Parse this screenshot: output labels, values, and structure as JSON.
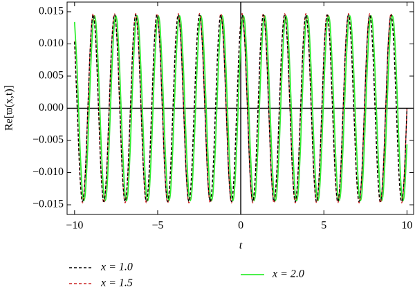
{
  "chart_data": {
    "type": "line",
    "x_label": "t",
    "y_label": "Re[ϖ(x,t)]",
    "xlim": [
      -10.45,
      10.4
    ],
    "ylim": [
      -0.0165,
      0.0165
    ],
    "xticks": [
      {
        "value": -10,
        "label": "−10"
      },
      {
        "value": -5,
        "label": "−5"
      },
      0,
      5,
      10
    ],
    "yticks": [
      {
        "value": 0.015,
        "label": "0.015"
      },
      {
        "value": 0.01,
        "label": "0.010"
      },
      {
        "value": 0.005,
        "label": "0.005"
      },
      {
        "value": 0,
        "label": "0.000"
      },
      {
        "value": -0.005,
        "label": "−0.005"
      },
      {
        "value": -0.01,
        "label": "−0.010"
      },
      {
        "value": -0.015,
        "label": "−0.015"
      }
    ],
    "x": [
      -10,
      -9.84,
      -9.68,
      -9.52,
      -9.36,
      -9.2,
      -9.04,
      -8.88,
      -8.72,
      -8.56,
      -8.4,
      -8.24,
      -8.08,
      -7.92,
      -7.76,
      -7.6,
      -7.44,
      -7.28,
      -7.12,
      -6.96,
      -6.8,
      -6.64,
      -6.48,
      -6.32,
      -6.16,
      -6,
      -5.84,
      -5.68,
      -5.52,
      -5.36,
      -5.2,
      -5.04,
      -4.88,
      -4.72,
      -4.56,
      -4.4,
      -4.24,
      -4.08,
      -3.92,
      -3.76,
      -3.6,
      -3.44,
      -3.28,
      -3.12,
      -2.96,
      -2.8,
      -2.64,
      -2.48,
      -2.32,
      -2.16,
      -2,
      -1.84,
      -1.68,
      -1.52,
      -1.36,
      -1.2,
      -1.04,
      -0.88,
      -0.72,
      -0.56,
      -0.4,
      -0.24,
      -0.08,
      0.08,
      0.24,
      0.4,
      0.56,
      0.72,
      0.88,
      1.04,
      1.2,
      1.36,
      1.52,
      1.68,
      1.84,
      2,
      2.16,
      2.32,
      2.48,
      2.64,
      2.8,
      2.96,
      3.12,
      3.28,
      3.44,
      3.6,
      3.76,
      3.92,
      4.08,
      4.24,
      4.4,
      4.56,
      4.72,
      4.88,
      5.04,
      5.2,
      5.36,
      5.52,
      5.68,
      5.84,
      6,
      6.16,
      6.32,
      6.48,
      6.64,
      6.8,
      6.96,
      7.12,
      7.28,
      7.44,
      7.6,
      7.76,
      7.92,
      8.08,
      8.24,
      8.4,
      8.56,
      8.72,
      8.88,
      9.04,
      9.2,
      9.36,
      9.52,
      9.68,
      9.84,
      10
    ],
    "series": [
      {
        "name": "x = 1.0",
        "color": "#000000",
        "style": "dashed",
        "values": [
          0.0103,
          0,
          -0.0103,
          -0.0145,
          -0.0103,
          0,
          0.0103,
          0.0145,
          0.0103,
          0,
          -0.0103,
          -0.0145,
          -0.0103,
          0,
          0.0103,
          0.0145,
          0.0103,
          0,
          -0.0103,
          -0.0145,
          -0.0103,
          0,
          0.0103,
          0.0145,
          0.0103,
          0,
          -0.0103,
          -0.0145,
          -0.0103,
          0,
          0.0103,
          0.0145,
          0.0103,
          0,
          -0.0103,
          -0.0145,
          -0.0103,
          0,
          0.0103,
          0.0145,
          0.0103,
          0,
          -0.0103,
          -0.0145,
          -0.0103,
          0,
          0.0103,
          0.0145,
          0.0103,
          0,
          -0.0103,
          -0.0145,
          -0.0103,
          0,
          0.0103,
          0.0145,
          0.0103,
          0,
          -0.0103,
          -0.0145,
          -0.0103,
          0,
          0.0103,
          0.0145,
          0.0103,
          0,
          -0.0103,
          -0.0145,
          -0.0103,
          0,
          0.0103,
          0.0145,
          0.0103,
          0,
          -0.0103,
          -0.0145,
          -0.0103,
          0,
          0.0103,
          0.0145,
          0.0103,
          0,
          -0.0103,
          -0.0145,
          -0.0103,
          0,
          0.0103,
          0.0145,
          0.0103,
          0,
          -0.0103,
          -0.0145,
          -0.0103,
          0,
          0.0103,
          0.0145,
          0.0103,
          0,
          -0.0103,
          -0.0145,
          -0.0103,
          0,
          0.0103,
          0.0145,
          0.0103,
          0,
          -0.0103,
          -0.0145,
          -0.0103,
          0,
          0.0103,
          0.0145,
          0.0103,
          0,
          -0.0103,
          -0.0145,
          -0.0103,
          0,
          0.0103,
          0.0145,
          0.0103,
          0,
          -0.0103,
          -0.0145,
          -0.0103,
          0
        ]
      },
      {
        "name": "x = 1.5",
        "color": "#cc2222",
        "style": "dashed",
        "values": [
          0.0104,
          0,
          -0.0104,
          -0.0147,
          -0.0104,
          0,
          0.0104,
          0.0147,
          0.0104,
          0,
          -0.0104,
          -0.0147,
          -0.0104,
          0,
          0.0104,
          0.0147,
          0.0104,
          0,
          -0.0104,
          -0.0147,
          -0.0104,
          0,
          0.0104,
          0.0147,
          0.0104,
          0,
          -0.0104,
          -0.0147,
          -0.0104,
          0,
          0.0104,
          0.0147,
          0.0104,
          0,
          -0.0104,
          -0.0147,
          -0.0104,
          0,
          0.0104,
          0.0147,
          0.0104,
          0,
          -0.0104,
          -0.0147,
          -0.0104,
          0,
          0.0104,
          0.0147,
          0.0104,
          0,
          -0.0104,
          -0.0147,
          -0.0104,
          0,
          0.0104,
          0.0147,
          0.0104,
          0,
          -0.0104,
          -0.0147,
          -0.0104,
          0,
          0.0104,
          0.0147,
          0.0104,
          0,
          -0.0104,
          -0.0147,
          -0.0104,
          0,
          0.0104,
          0.0147,
          0.0104,
          0,
          -0.0104,
          -0.0147,
          -0.0104,
          0,
          0.0104,
          0.0147,
          0.0104,
          0,
          -0.0104,
          -0.0147,
          -0.0104,
          0,
          0.0104,
          0.0147,
          0.0104,
          0,
          -0.0104,
          -0.0147,
          -0.0104,
          0,
          0.0104,
          0.0147,
          0.0104,
          0,
          -0.0104,
          -0.0147,
          -0.0104,
          0,
          0.0104,
          0.0147,
          0.0104,
          0,
          -0.0104,
          -0.0147,
          -0.0104,
          0,
          0.0104,
          0.0147,
          0.0104,
          0,
          -0.0104,
          -0.0147,
          -0.0104,
          0,
          0.0104,
          0.0147,
          0.0104,
          0,
          -0.0104,
          -0.0147,
          -0.0104,
          0
        ]
      },
      {
        "name": "x = 2.0",
        "color": "#33ee33",
        "style": "solid",
        "values": [
          0.0134,
          0.0056,
          -0.0056,
          -0.0134,
          -0.0134,
          -0.0056,
          0.0056,
          0.0134,
          0.0134,
          0.0056,
          -0.0056,
          -0.0134,
          -0.0134,
          -0.0056,
          0.0056,
          0.0134,
          0.0134,
          0.0056,
          -0.0056,
          -0.0134,
          -0.0134,
          -0.0056,
          0.0056,
          0.0134,
          0.0134,
          0.0056,
          -0.0056,
          -0.0134,
          -0.0134,
          -0.0056,
          0.0056,
          0.0134,
          0.0134,
          0.0056,
          -0.0056,
          -0.0134,
          -0.0134,
          -0.0056,
          0.0056,
          0.0134,
          0.0134,
          0.0056,
          -0.0056,
          -0.0134,
          -0.0134,
          -0.0056,
          0.0056,
          0.0134,
          0.0134,
          0.0056,
          -0.0056,
          -0.0134,
          -0.0134,
          -0.0056,
          0.0056,
          0.0134,
          0.0134,
          0.0056,
          -0.0056,
          -0.0134,
          -0.0134,
          -0.0056,
          0.0056,
          0.0134,
          0.0134,
          0.0056,
          -0.0056,
          -0.0134,
          -0.0134,
          -0.0056,
          0.0056,
          0.0134,
          0.0134,
          0.0056,
          -0.0056,
          -0.0134,
          -0.0134,
          -0.0056,
          0.0056,
          0.0134,
          0.0134,
          0.0056,
          -0.0056,
          -0.0134,
          -0.0134,
          -0.0056,
          0.0056,
          0.0134,
          0.0134,
          0.0056,
          -0.0056,
          -0.0134,
          -0.0134,
          -0.0056,
          0.0056,
          0.0134,
          0.0134,
          0.0056,
          -0.0056,
          -0.0134,
          -0.0134,
          -0.0056,
          0.0056,
          0.0134,
          0.0134,
          0.0056,
          -0.0056,
          -0.0134,
          -0.0134,
          -0.0056,
          0.0056,
          0.0134,
          0.0134,
          0.0056,
          -0.0056,
          -0.0134,
          -0.0134,
          -0.0056,
          0.0056,
          0.0134,
          0.0134,
          0.0056,
          -0.0056,
          -0.0134,
          -0.0134,
          -0.0056
        ]
      }
    ]
  }
}
